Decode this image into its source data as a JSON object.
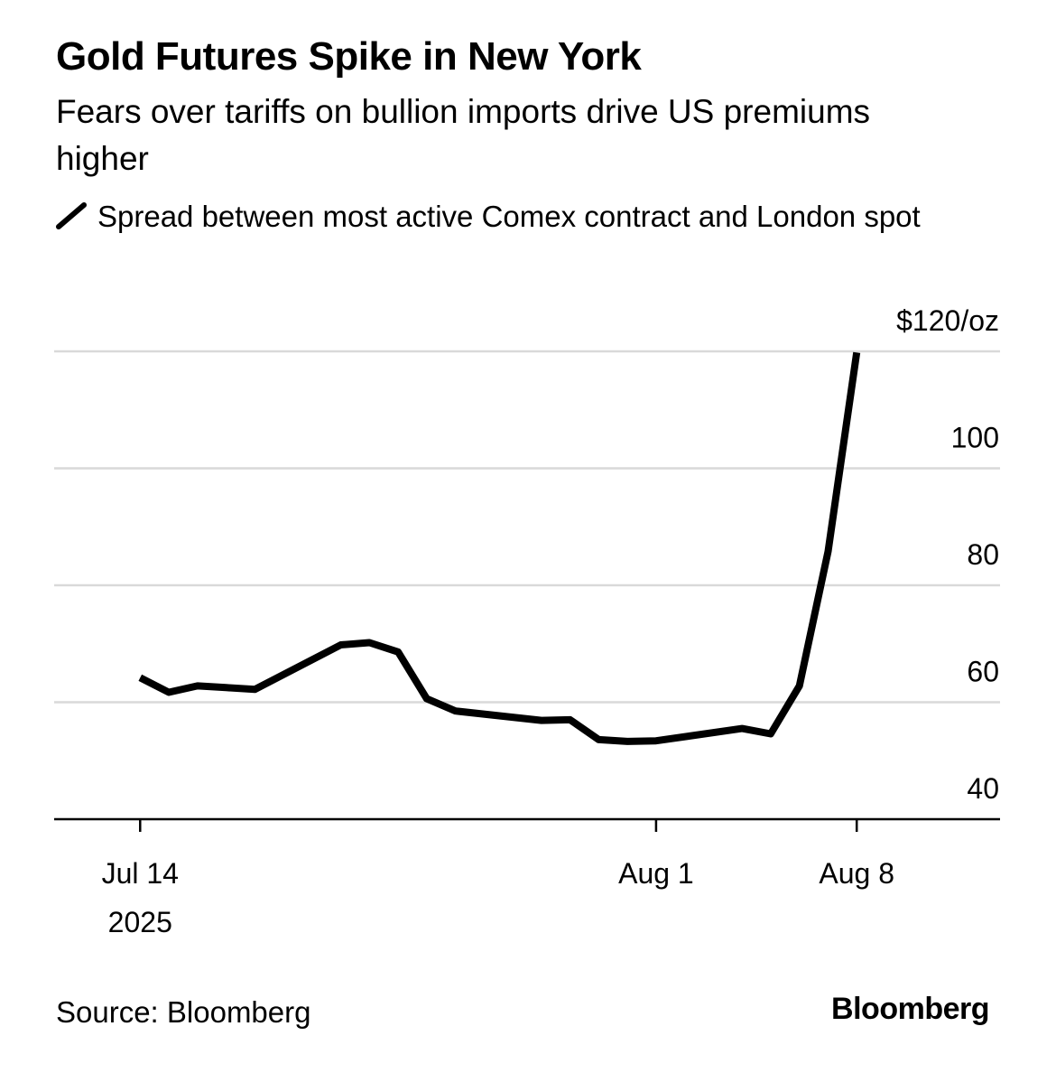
{
  "title": "Gold Futures Spike in New York",
  "subtitle": "Fears over tariffs on bullion imports drive US premiums higher",
  "source": "Source: Bloomberg",
  "brand": "Bloomberg",
  "chart_data": {
    "type": "line",
    "title": "Gold Futures Spike in New York",
    "subtitle": "Fears over tariffs on bullion imports drive US premiums higher",
    "ylabel": "",
    "y_unit_label": "$120/oz",
    "ylim": [
      40,
      120
    ],
    "y_ticks": [
      {
        "value": 120,
        "label": "$120/oz"
      },
      {
        "value": 100,
        "label": "100"
      },
      {
        "value": 80,
        "label": "80"
      },
      {
        "value": 60,
        "label": "60"
      },
      {
        "value": 40,
        "label": "40"
      }
    ],
    "xlim": [
      "2025-07-11",
      "2025-08-13"
    ],
    "x_ticks": [
      {
        "value": "2025-07-14",
        "label": "Jul 14",
        "sublabel": "2025"
      },
      {
        "value": "2025-08-01",
        "label": "Aug 1"
      },
      {
        "value": "2025-08-08",
        "label": "Aug 8"
      }
    ],
    "grid": true,
    "legend_position": "top-left",
    "color": "#000000",
    "series": [
      {
        "name": "Spread between most active Comex contract and London spot",
        "color": "#000000",
        "x": [
          "2025-07-14",
          "2025-07-15",
          "2025-07-16",
          "2025-07-17",
          "2025-07-18",
          "2025-07-21",
          "2025-07-22",
          "2025-07-23",
          "2025-07-24",
          "2025-07-25",
          "2025-07-28",
          "2025-07-29",
          "2025-07-30",
          "2025-07-31",
          "2025-08-01",
          "2025-08-04",
          "2025-08-05",
          "2025-08-06",
          "2025-08-07",
          "2025-08-08"
        ],
        "y": [
          64.2,
          61.7,
          62.8,
          62.5,
          62.2,
          69.8,
          70.2,
          68.6,
          60.6,
          58.5,
          56.9,
          57.0,
          53.6,
          53.3,
          53.4,
          55.5,
          54.6,
          62.8,
          85.8,
          119.8
        ]
      }
    ]
  }
}
